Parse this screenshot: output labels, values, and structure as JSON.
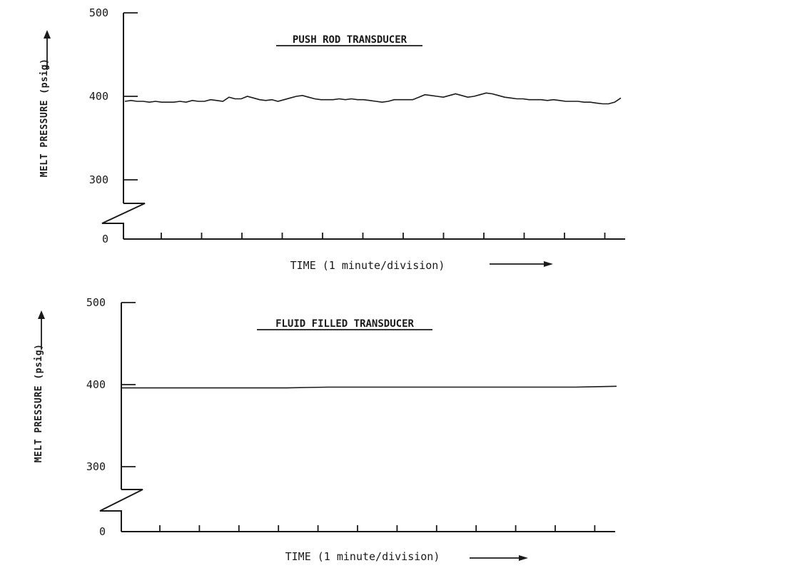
{
  "chart_data": [
    {
      "type": "line",
      "title": "PUSH ROD TRANSDUCER",
      "xlabel": "TIME (1 minute/division)",
      "ylabel": "MELT PRESSURE (psig)",
      "yticks": [
        0,
        300,
        400,
        500
      ],
      "ylim": [
        300,
        500
      ],
      "axis_break": "between 0 and 300",
      "x_divisions": 12,
      "grid": false,
      "series": [
        {
          "values": [
            394,
            395,
            394,
            394,
            393,
            394,
            393,
            393,
            393,
            394,
            393,
            395,
            394,
            394,
            396,
            395,
            394,
            399,
            397,
            397,
            400,
            398,
            396,
            395,
            396,
            394,
            396,
            398,
            400,
            401,
            399,
            397,
            396,
            396,
            396,
            397,
            396,
            397,
            396,
            396,
            395,
            394,
            393,
            394,
            396,
            396,
            396,
            396,
            399,
            402,
            401,
            400,
            399,
            401,
            403,
            401,
            399,
            400,
            402,
            404,
            403,
            401,
            399,
            398,
            397,
            397,
            396,
            396,
            396,
            395,
            396,
            395,
            394,
            394,
            394,
            393,
            393,
            392,
            391,
            391,
            393,
            398
          ]
        }
      ]
    },
    {
      "type": "line",
      "title": "FLUID FILLED TRANSDUCER",
      "xlabel": "TIME (1 minute/division)",
      "ylabel": "MELT PRESSURE (psig)",
      "yticks": [
        0,
        300,
        400,
        500
      ],
      "ylim": [
        300,
        500
      ],
      "axis_break": "between 0 and 300",
      "x_divisions": 12,
      "grid": false,
      "series": [
        {
          "values": [
            396,
            396,
            396,
            396,
            396,
            396,
            396,
            396,
            396,
            396.5,
            397,
            397,
            397,
            397,
            397,
            397,
            397,
            397,
            397,
            397,
            397,
            397,
            397,
            397.5,
            398
          ]
        }
      ]
    }
  ]
}
